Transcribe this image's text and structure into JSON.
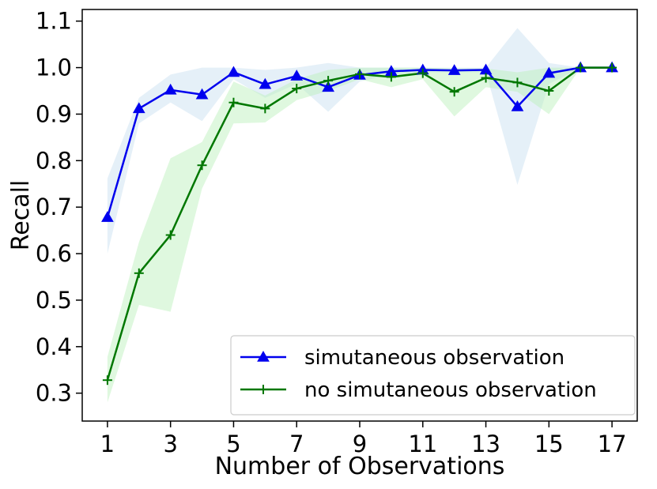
{
  "chart_data": {
    "type": "line",
    "title": "",
    "xlabel": "Number of Observations",
    "ylabel": "Recall",
    "xlim": [
      0.2,
      17.8
    ],
    "ylim": [
      0.24,
      1.125
    ],
    "xticks": [
      1,
      3,
      5,
      7,
      9,
      11,
      13,
      15,
      17
    ],
    "xtick_labels": [
      "1",
      "3",
      "5",
      "7",
      "9",
      "11",
      "13",
      "15",
      "17"
    ],
    "yticks": [
      0.3,
      0.4,
      0.5,
      0.6,
      0.7,
      0.8,
      0.9,
      1.0,
      1.1
    ],
    "ytick_labels": [
      "0.3",
      "0.4",
      "0.5",
      "0.6",
      "0.7",
      "0.8",
      "0.9",
      "1.0",
      "1.1"
    ],
    "grid": false,
    "legend_position": "bottom-right",
    "x": [
      1,
      2,
      3,
      4,
      5,
      6,
      7,
      8,
      9,
      10,
      11,
      12,
      13,
      14,
      15,
      16,
      17
    ],
    "series": [
      {
        "name": "simutaneous observation",
        "color": "#0000ee",
        "band_color": "#cfe3f2",
        "marker": "triangle",
        "values": [
          0.678,
          0.912,
          0.952,
          0.942,
          0.99,
          0.964,
          0.982,
          0.958,
          0.984,
          0.992,
          0.995,
          0.994,
          0.995,
          0.916,
          0.988,
          1.0,
          1.0
        ],
        "lower": [
          0.6,
          0.88,
          0.925,
          0.885,
          0.975,
          0.935,
          0.965,
          0.905,
          0.97,
          0.985,
          0.99,
          0.99,
          0.99,
          0.748,
          0.965,
          1.0,
          1.0
        ],
        "upper": [
          0.762,
          0.935,
          0.985,
          1.0,
          1.0,
          0.995,
          1.0,
          1.01,
          1.0,
          1.0,
          1.0,
          1.0,
          1.0,
          1.085,
          1.01,
          1.0,
          1.0
        ]
      },
      {
        "name": "no simutaneous observation",
        "color": "#007700",
        "band_color": "#b8f0b8",
        "marker": "plus",
        "values": [
          0.328,
          0.558,
          0.64,
          0.79,
          0.925,
          0.912,
          0.955,
          0.972,
          0.986,
          0.98,
          0.988,
          0.948,
          0.978,
          0.968,
          0.95,
          1.0,
          1.0
        ],
        "lower": [
          0.28,
          0.49,
          0.475,
          0.74,
          0.88,
          0.882,
          0.93,
          0.95,
          0.975,
          0.958,
          0.975,
          0.895,
          0.958,
          0.948,
          0.9,
          1.0,
          1.0
        ],
        "upper": [
          0.378,
          0.625,
          0.805,
          0.84,
          0.97,
          0.94,
          0.975,
          0.995,
          1.0,
          1.0,
          1.0,
          0.998,
          0.998,
          0.99,
          1.0,
          1.0,
          1.0
        ]
      }
    ]
  }
}
